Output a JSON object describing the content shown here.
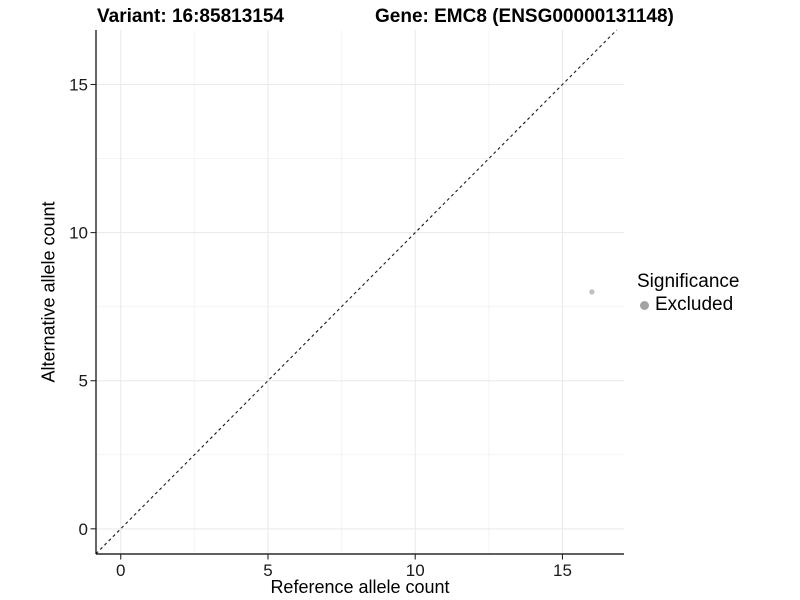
{
  "chart_data": {
    "type": "scatter",
    "title_left": "Variant: 16:85813154",
    "title_right": "Gene: EMC8 (ENSG00000131148)",
    "xlabel": "Reference allele count",
    "ylabel": "Alternative allele count",
    "xlim": [
      -0.84,
      17.09
    ],
    "ylim": [
      -0.85,
      16.84
    ],
    "x_ticks": {
      "values": [
        0,
        5,
        10,
        15
      ],
      "labels": [
        "0",
        "5",
        "10",
        "15"
      ]
    },
    "y_ticks": {
      "values": [
        0,
        5,
        10,
        15
      ],
      "labels": [
        "0",
        "5",
        "10",
        "15"
      ]
    },
    "minor_gridlines": [
      2.5,
      7.5,
      12.5
    ],
    "grid": "major+minor",
    "reference_line": {
      "type": "identity y=x",
      "style": "dashed",
      "dash": "3,3",
      "color": "#1a1a1a"
    },
    "points": [
      {
        "x": 16,
        "y": 8,
        "series": "Excluded"
      }
    ],
    "legend": {
      "title": "Significance",
      "position": "right",
      "entries": [
        {
          "label": "Excluded",
          "color": "#a3a3a3"
        }
      ]
    },
    "colors": {
      "background": "#ffffff",
      "grid_major": "#e9e9e9",
      "grid_minor": "#f4f4f4",
      "axis_line": "#000000",
      "tick_mark": "#262626",
      "tick_text": "#1a1a1a",
      "point": "#bfbfbf"
    }
  }
}
